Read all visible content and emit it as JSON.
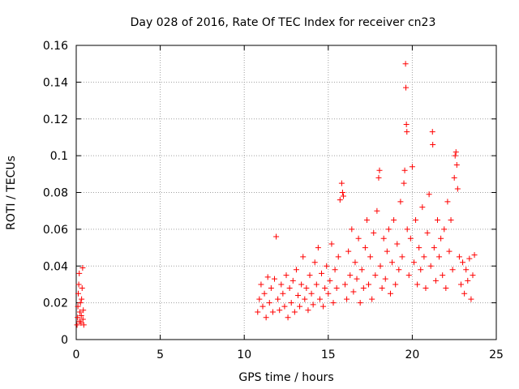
{
  "chart_data": {
    "type": "scatter",
    "title": "Day 028 of 2016, Rate Of TEC Index for receiver cn23",
    "xlabel": "GPS time / hours",
    "ylabel": "ROTI / TECUs",
    "xlim": [
      0,
      25
    ],
    "ylim": [
      0,
      0.16
    ],
    "xticks": [
      "0",
      "5",
      "10",
      "15",
      "20",
      "25"
    ],
    "xtick_values": [
      0,
      5,
      10,
      15,
      20,
      25
    ],
    "yticks": [
      "0",
      "0.02",
      "0.04",
      "0.06",
      "0.08",
      "0.1",
      "0.12",
      "0.14",
      "0.16"
    ],
    "ytick_values": [
      0,
      0.02,
      0.04,
      0.06,
      0.08,
      0.1,
      0.12,
      0.14,
      0.16
    ],
    "grid": true,
    "marker": "plus",
    "series_color": "#ff0000",
    "series": [
      {
        "name": "ROTI",
        "points": [
          [
            0.05,
            0.008
          ],
          [
            0.08,
            0.012
          ],
          [
            0.1,
            0.018
          ],
          [
            0.12,
            0.025
          ],
          [
            0.15,
            0.03
          ],
          [
            0.18,
            0.036
          ],
          [
            0.2,
            0.01
          ],
          [
            0.22,
            0.015
          ],
          [
            0.25,
            0.02
          ],
          [
            0.28,
            0.009
          ],
          [
            0.3,
            0.013
          ],
          [
            0.32,
            0.022
          ],
          [
            0.35,
            0.028
          ],
          [
            0.38,
            0.039
          ],
          [
            0.4,
            0.011
          ],
          [
            0.42,
            0.016
          ],
          [
            0.45,
            0.008
          ],
          [
            10.8,
            0.015
          ],
          [
            10.9,
            0.022
          ],
          [
            11.0,
            0.03
          ],
          [
            11.1,
            0.018
          ],
          [
            11.2,
            0.025
          ],
          [
            11.3,
            0.012
          ],
          [
            11.4,
            0.034
          ],
          [
            11.5,
            0.02
          ],
          [
            11.6,
            0.028
          ],
          [
            11.7,
            0.015
          ],
          [
            11.8,
            0.033
          ],
          [
            11.9,
            0.056
          ],
          [
            12.0,
            0.022
          ],
          [
            12.1,
            0.016
          ],
          [
            12.2,
            0.03
          ],
          [
            12.3,
            0.025
          ],
          [
            12.4,
            0.018
          ],
          [
            12.5,
            0.035
          ],
          [
            12.6,
            0.012
          ],
          [
            12.7,
            0.028
          ],
          [
            12.8,
            0.02
          ],
          [
            12.9,
            0.032
          ],
          [
            13.0,
            0.015
          ],
          [
            13.1,
            0.038
          ],
          [
            13.2,
            0.024
          ],
          [
            13.3,
            0.018
          ],
          [
            13.4,
            0.03
          ],
          [
            13.5,
            0.045
          ],
          [
            13.6,
            0.022
          ],
          [
            13.7,
            0.028
          ],
          [
            13.8,
            0.016
          ],
          [
            13.9,
            0.035
          ],
          [
            14.0,
            0.025
          ],
          [
            14.1,
            0.019
          ],
          [
            14.2,
            0.042
          ],
          [
            14.3,
            0.03
          ],
          [
            14.4,
            0.05
          ],
          [
            14.5,
            0.022
          ],
          [
            14.6,
            0.036
          ],
          [
            14.7,
            0.018
          ],
          [
            14.8,
            0.028
          ],
          [
            14.9,
            0.04
          ],
          [
            15.0,
            0.025
          ],
          [
            15.1,
            0.032
          ],
          [
            15.2,
            0.052
          ],
          [
            15.3,
            0.02
          ],
          [
            15.4,
            0.038
          ],
          [
            15.5,
            0.028
          ],
          [
            15.6,
            0.045
          ],
          [
            15.7,
            0.076
          ],
          [
            15.8,
            0.085
          ],
          [
            15.85,
            0.08
          ],
          [
            15.9,
            0.078
          ],
          [
            16.0,
            0.03
          ],
          [
            16.1,
            0.022
          ],
          [
            16.2,
            0.048
          ],
          [
            16.3,
            0.035
          ],
          [
            16.4,
            0.06
          ],
          [
            16.5,
            0.026
          ],
          [
            16.6,
            0.042
          ],
          [
            16.7,
            0.033
          ],
          [
            16.8,
            0.055
          ],
          [
            16.9,
            0.02
          ],
          [
            17.0,
            0.038
          ],
          [
            17.1,
            0.028
          ],
          [
            17.2,
            0.05
          ],
          [
            17.3,
            0.065
          ],
          [
            17.4,
            0.03
          ],
          [
            17.5,
            0.045
          ],
          [
            17.6,
            0.022
          ],
          [
            17.7,
            0.058
          ],
          [
            17.8,
            0.035
          ],
          [
            17.9,
            0.07
          ],
          [
            18.0,
            0.088
          ],
          [
            18.05,
            0.092
          ],
          [
            18.1,
            0.04
          ],
          [
            18.2,
            0.028
          ],
          [
            18.3,
            0.055
          ],
          [
            18.4,
            0.033
          ],
          [
            18.5,
            0.048
          ],
          [
            18.6,
            0.06
          ],
          [
            18.7,
            0.025
          ],
          [
            18.8,
            0.042
          ],
          [
            18.9,
            0.065
          ],
          [
            19.0,
            0.03
          ],
          [
            19.1,
            0.052
          ],
          [
            19.2,
            0.038
          ],
          [
            19.3,
            0.075
          ],
          [
            19.4,
            0.045
          ],
          [
            19.5,
            0.085
          ],
          [
            19.55,
            0.092
          ],
          [
            19.6,
            0.15
          ],
          [
            19.62,
            0.137
          ],
          [
            19.65,
            0.117
          ],
          [
            19.68,
            0.113
          ],
          [
            19.7,
            0.06
          ],
          [
            19.8,
            0.035
          ],
          [
            19.9,
            0.055
          ],
          [
            20.0,
            0.094
          ],
          [
            20.1,
            0.042
          ],
          [
            20.2,
            0.065
          ],
          [
            20.3,
            0.03
          ],
          [
            20.4,
            0.05
          ],
          [
            20.5,
            0.038
          ],
          [
            20.6,
            0.072
          ],
          [
            20.7,
            0.045
          ],
          [
            20.8,
            0.028
          ],
          [
            20.9,
            0.058
          ],
          [
            21.0,
            0.079
          ],
          [
            21.1,
            0.04
          ],
          [
            21.2,
            0.113
          ],
          [
            21.22,
            0.106
          ],
          [
            21.3,
            0.05
          ],
          [
            21.4,
            0.032
          ],
          [
            21.5,
            0.065
          ],
          [
            21.6,
            0.045
          ],
          [
            21.7,
            0.055
          ],
          [
            21.8,
            0.035
          ],
          [
            21.9,
            0.06
          ],
          [
            22.0,
            0.028
          ],
          [
            22.1,
            0.075
          ],
          [
            22.2,
            0.048
          ],
          [
            22.3,
            0.065
          ],
          [
            22.4,
            0.038
          ],
          [
            22.5,
            0.088
          ],
          [
            22.55,
            0.1
          ],
          [
            22.6,
            0.102
          ],
          [
            22.65,
            0.095
          ],
          [
            22.7,
            0.082
          ],
          [
            22.8,
            0.045
          ],
          [
            22.9,
            0.03
          ],
          [
            23.0,
            0.042
          ],
          [
            23.1,
            0.025
          ],
          [
            23.2,
            0.038
          ],
          [
            23.3,
            0.032
          ],
          [
            23.4,
            0.044
          ],
          [
            23.5,
            0.022
          ],
          [
            23.6,
            0.035
          ],
          [
            23.7,
            0.046
          ]
        ]
      }
    ]
  }
}
